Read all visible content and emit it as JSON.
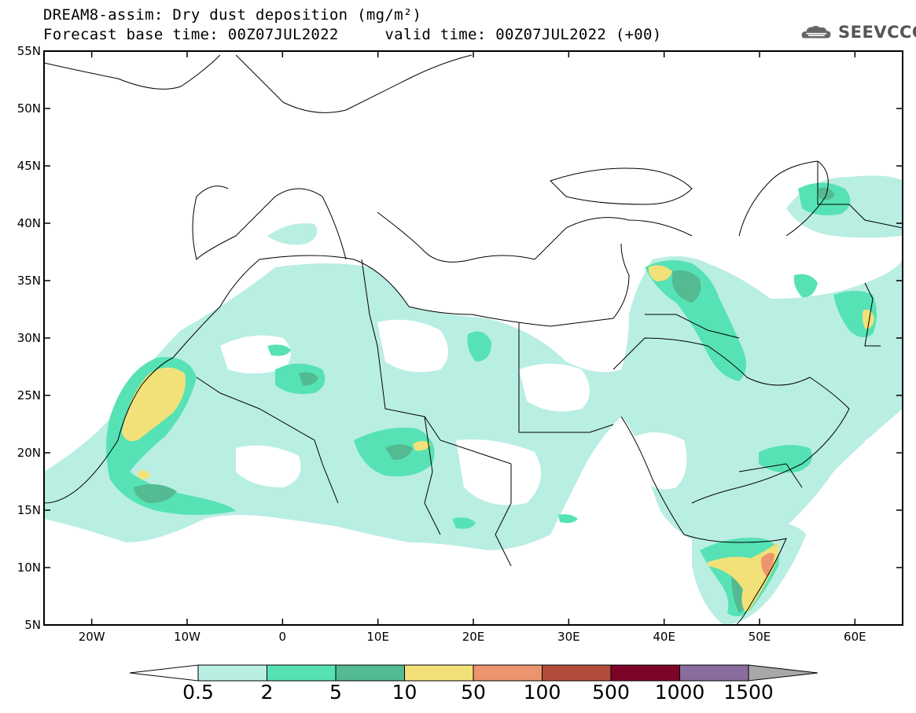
{
  "header": {
    "title": "DREAM8-assim: Dry dust deposition (mg/m²)",
    "base_time_label": "Forecast base time: 00Z07JUL2022",
    "valid_time_label": "valid time: 00Z07JUL2022 (+00)",
    "logo_text": "SEEVCCC",
    "logo_icon": "cloud-logo-icon"
  },
  "map": {
    "lat_labels": [
      "55N",
      "50N",
      "45N",
      "40N",
      "35N",
      "30N",
      "25N",
      "20N",
      "15N",
      "10N",
      "5N"
    ],
    "lon_labels": [
      "20W",
      "10W",
      "0",
      "10E",
      "20E",
      "30E",
      "40E",
      "50E",
      "60E"
    ],
    "lat_range": [
      5,
      55
    ],
    "lon_range": [
      -25,
      65
    ]
  },
  "legend": {
    "levels": [
      "0.5",
      "2",
      "5",
      "10",
      "50",
      "100",
      "500",
      "1000",
      "1500"
    ],
    "colors": [
      "#b9eee3",
      "#56e2b4",
      "#53ba91",
      "#f2e179",
      "#ec946e",
      "#b34b3d",
      "#7d0428",
      "#8a6c9f",
      "#a8a8a8"
    ]
  }
}
